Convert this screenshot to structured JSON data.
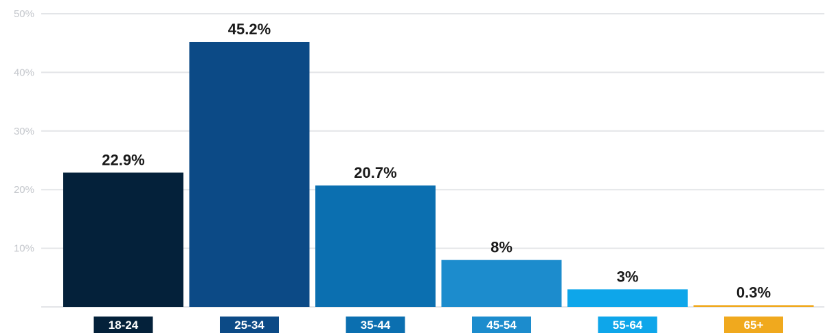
{
  "chart_data": {
    "type": "bar",
    "categories": [
      "18-24",
      "25-34",
      "35-44",
      "45-54",
      "55-64",
      "65+"
    ],
    "values": [
      22.9,
      45.2,
      20.7,
      8,
      3,
      0.3
    ],
    "data_labels": [
      "22.9%",
      "45.2%",
      "20.7%",
      "8%",
      "3%",
      "0.3%"
    ],
    "colors": [
      "#04213a",
      "#0c4a86",
      "#0b6fb0",
      "#1c8ccd",
      "#0ea6ea",
      "#f0a91e"
    ],
    "y_ticks": [
      10,
      20,
      30,
      40,
      50
    ],
    "y_tick_labels": [
      "10%",
      "20%",
      "30%",
      "40%",
      "50%"
    ],
    "ylim": [
      0,
      50
    ],
    "grid": true,
    "grid_color": "#e3e5e8",
    "title": "",
    "xlabel": "",
    "ylabel": ""
  }
}
